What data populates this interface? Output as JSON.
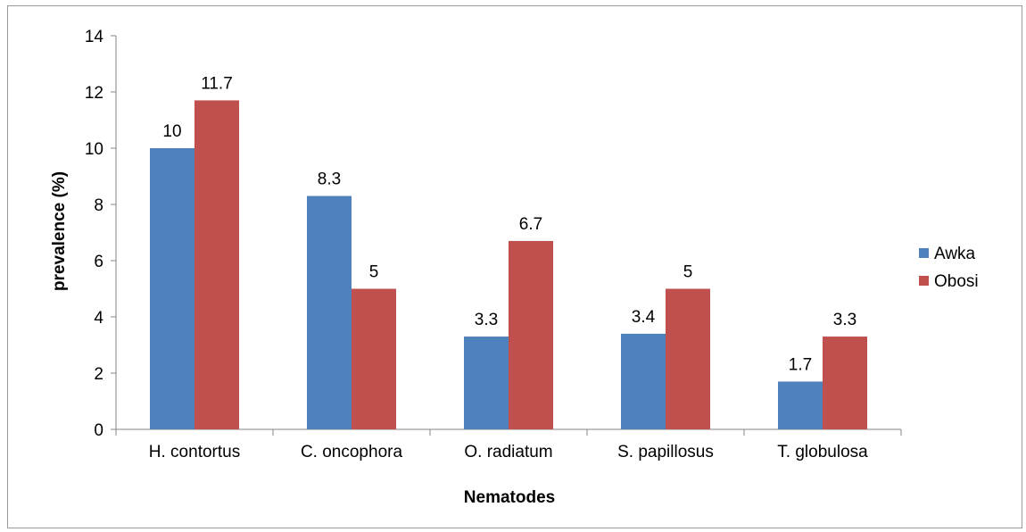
{
  "chart_data": {
    "type": "bar",
    "title": "",
    "xlabel": "Nematodes",
    "ylabel": "prevalence (%)",
    "ylim": [
      0,
      14
    ],
    "yticks": [
      0,
      2,
      4,
      6,
      8,
      10,
      12,
      14
    ],
    "grid": false,
    "legend_position": "right",
    "categories": [
      "H. contortus",
      "C. oncophora",
      "O. radiatum",
      "S. papillosus",
      "T. globulosa"
    ],
    "series": [
      {
        "name": "Awka",
        "color": "#4f81bd",
        "values": [
          10,
          8.3,
          3.3,
          3.4,
          1.7
        ],
        "labels": [
          "10",
          "8.3",
          "3.3",
          "3.4",
          "1.7"
        ]
      },
      {
        "name": "Obosi",
        "color": "#c0504d",
        "values": [
          11.7,
          5,
          6.7,
          5,
          3.3
        ],
        "labels": [
          "11.7",
          "5",
          "6.7",
          "5",
          "3.3"
        ]
      }
    ]
  }
}
